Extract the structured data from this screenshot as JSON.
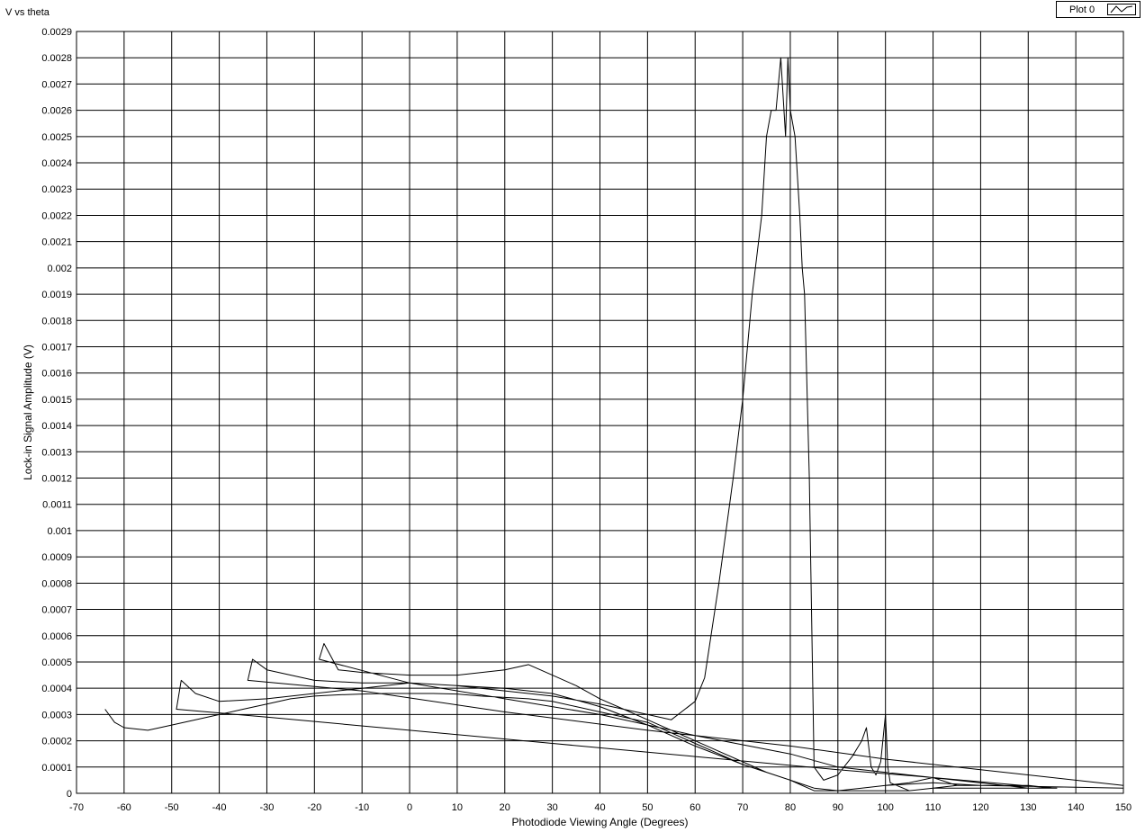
{
  "chart_data": {
    "type": "line",
    "title": "V vs theta",
    "xlabel": "Photodiode Viewing Angle (Degrees)",
    "ylabel": "Lock-in Signal Amplitude (V)",
    "xlim": [
      -70,
      150
    ],
    "ylim": [
      0,
      0.0029
    ],
    "x_ticks": [
      -70,
      -60,
      -50,
      -40,
      -30,
      -20,
      -10,
      0,
      10,
      20,
      30,
      40,
      50,
      60,
      70,
      80,
      90,
      100,
      110,
      120,
      130,
      140,
      150
    ],
    "y_ticks": [
      "0",
      "0.0001",
      "0.0002",
      "0.0003",
      "0.0004",
      "0.0005",
      "0.0006",
      "0.0007",
      "0.0008",
      "0.0009",
      "0.001",
      "0.0011",
      "0.0012",
      "0.0013",
      "0.0014",
      "0.0015",
      "0.0016",
      "0.0017",
      "0.0018",
      "0.0019",
      "0.002",
      "0.0021",
      "0.0022",
      "0.0023",
      "0.0024",
      "0.0025",
      "0.0026",
      "0.0027",
      "0.0028",
      "0.0029"
    ],
    "grid": true,
    "legend": {
      "position": "top-right",
      "entries": [
        "Plot 0"
      ]
    },
    "line_color": "#000000",
    "series": [
      {
        "name": "Plot 0",
        "x": [
          -64,
          -62,
          -60,
          -55,
          -50,
          -45,
          -40,
          -35,
          -30,
          -25,
          -20,
          -15,
          -10,
          -5,
          0,
          5,
          10,
          15,
          20,
          25,
          30,
          35,
          40,
          45,
          50,
          55,
          60,
          65,
          70,
          75,
          80,
          85,
          90,
          95,
          100,
          105,
          110,
          115,
          120,
          125,
          130,
          135,
          136,
          135,
          110,
          90,
          60,
          30,
          0,
          -30,
          -49,
          -48,
          -45,
          -40,
          -30,
          -20,
          -10,
          0,
          10,
          20,
          30,
          40,
          50,
          60,
          70,
          80,
          85,
          90,
          95,
          100,
          110,
          120,
          150,
          150,
          120,
          100,
          80,
          50,
          20,
          -10,
          -34,
          -33,
          -30,
          -20,
          -10,
          0,
          10,
          20,
          30,
          40,
          50,
          55,
          60,
          62,
          65,
          68,
          70,
          72,
          74,
          75,
          76,
          77,
          78,
          79,
          79.5,
          80,
          81,
          82,
          82.5,
          83,
          84,
          85,
          87,
          90,
          93,
          95,
          96,
          97,
          98,
          99,
          100,
          100.5,
          101,
          105,
          110,
          115,
          120,
          125,
          130,
          135,
          130,
          110,
          90,
          80,
          60,
          40,
          20,
          0,
          -19,
          -18,
          -15,
          -10,
          0,
          10,
          20,
          25,
          30,
          35,
          40,
          45,
          50,
          55,
          60,
          65,
          70,
          75,
          80,
          85,
          90,
          95,
          100,
          105,
          110,
          115
        ],
        "y": [
          0.00032,
          0.00027,
          0.00025,
          0.00024,
          0.00026,
          0.00028,
          0.0003,
          0.00032,
          0.00034,
          0.00036,
          0.00037,
          0.000375,
          0.000378,
          0.00038,
          0.00038,
          0.00038,
          0.000378,
          0.00037,
          0.000365,
          0.00036,
          0.00035,
          0.00033,
          0.00031,
          0.00029,
          0.00027,
          0.00023,
          0.00019,
          0.00015,
          0.00011,
          8e-05,
          5e-05,
          2e-05,
          1e-05,
          1e-05,
          1e-05,
          1e-05,
          2e-05,
          2e-05,
          2e-05,
          2e-05,
          2e-05,
          2e-05,
          2e-05,
          2e-05,
          6e-05,
          9e-05,
          0.00014,
          0.00019,
          0.00024,
          0.00029,
          0.00032,
          0.00043,
          0.00038,
          0.00035,
          0.00036,
          0.00038,
          0.0004,
          0.00042,
          0.00041,
          0.0004,
          0.00038,
          0.00033,
          0.00026,
          0.00018,
          0.00011,
          5e-05,
          1e-05,
          1e-05,
          2e-05,
          3e-05,
          4e-05,
          3e-05,
          2e-05,
          3e-05,
          9e-05,
          0.00013,
          0.00018,
          0.00024,
          0.00031,
          0.00039,
          0.00043,
          0.00051,
          0.00047,
          0.00043,
          0.00042,
          0.00042,
          0.00041,
          0.00039,
          0.00037,
          0.00034,
          0.0003,
          0.00028,
          0.00035,
          0.00044,
          0.0008,
          0.0012,
          0.0015,
          0.0019,
          0.0022,
          0.0025,
          0.0026,
          0.0026,
          0.0028,
          0.0025,
          0.0028,
          0.0026,
          0.0025,
          0.0022,
          0.002,
          0.0019,
          0.0012,
          0.0001,
          5e-05,
          7e-05,
          0.00014,
          0.0002,
          0.00025,
          0.0001,
          7e-05,
          0.00012,
          0.0003,
          0.0001,
          4e-05,
          1e-05,
          2e-05,
          3e-05,
          3e-05,
          3e-05,
          3e-05,
          2e-05,
          2e-05,
          6e-05,
          0.0001,
          0.00015,
          0.00022,
          0.0003,
          0.00036,
          0.00042,
          0.00051,
          0.00057,
          0.00047,
          0.00046,
          0.00045,
          0.00045,
          0.00047,
          0.00049,
          0.00045,
          0.00041,
          0.00036,
          0.00032,
          0.00028,
          0.00024,
          0.0002,
          0.00016,
          0.00012,
          8e-05,
          5e-05,
          2e-05,
          1e-05,
          2e-05,
          3e-05,
          4e-05,
          6e-05,
          3e-05
        ]
      }
    ]
  }
}
